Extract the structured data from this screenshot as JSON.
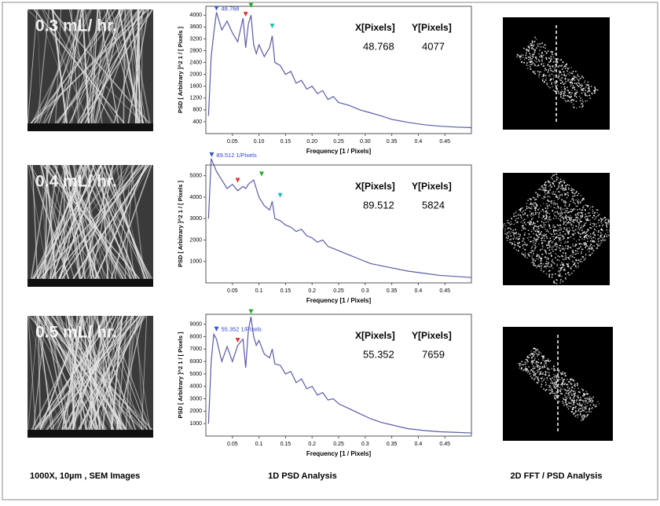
{
  "panels": [
    {
      "sem_label": "0.3 mL/ hr."
    },
    {
      "sem_label": "0.4 mL/ hr."
    },
    {
      "sem_label": "0.5 mL/ hr."
    }
  ],
  "captions": {
    "sem": "1000X, 10µm , SEM Images",
    "psd": "1D  PSD Analysis",
    "fft": "2D FFT / PSD Analysis"
  },
  "chart_data": [
    {
      "type": "line",
      "x_label": "Frequency [1 / Pixels]",
      "y_label": "PSD [ Arbitrary ]^2 1 / [ Pixels ]",
      "x": [
        0.005,
        0.01,
        0.015,
        0.02,
        0.03,
        0.04,
        0.05,
        0.06,
        0.07,
        0.075,
        0.08,
        0.085,
        0.09,
        0.095,
        0.1,
        0.11,
        0.12,
        0.125,
        0.13,
        0.14,
        0.15,
        0.16,
        0.17,
        0.18,
        0.19,
        0.2,
        0.21,
        0.22,
        0.23,
        0.24,
        0.25,
        0.27,
        0.29,
        0.31,
        0.33,
        0.35,
        0.38,
        0.41,
        0.44,
        0.47,
        0.5
      ],
      "series": [
        {
          "color": "#5a5aa8",
          "values": [
            600,
            2600,
            3400,
            4100,
            3500,
            3800,
            3400,
            3100,
            3900,
            2900,
            3700,
            4000,
            3000,
            2700,
            3000,
            2600,
            2900,
            3300,
            2400,
            2300,
            2000,
            2100,
            1700,
            1800,
            1500,
            1600,
            1350,
            1450,
            1150,
            1250,
            1050,
            950,
            800,
            700,
            600,
            480,
            380,
            300,
            250,
            220,
            200
          ]
        }
      ],
      "xlim": [
        0,
        0.5
      ],
      "ylim": [
        0,
        4300
      ],
      "xticks": [
        0.05,
        {
          "value": 0.1,
          "label": "0.10"
        },
        0.15,
        {
          "value": 0.2,
          "label": "0.20"
        },
        0.25,
        {
          "value": 0.3,
          "label": "0.30"
        },
        0.35,
        0.4,
        0.45
      ],
      "yticks": [
        400,
        800,
        1200,
        1600,
        2000,
        2400,
        2800,
        3200,
        3600,
        4000
      ],
      "markers": [
        {
          "x": 0.02,
          "y": 4100,
          "color": "#3355cc"
        },
        {
          "x": 0.075,
          "y": 3900,
          "color": "#dd3333"
        },
        {
          "x": 0.085,
          "y": 4200,
          "color": "#22aa22"
        },
        {
          "x": 0.125,
          "y": 3500,
          "color": "#22bbbb"
        }
      ],
      "peak_label": "48.768",
      "readout": {
        "x_header": "X[Pixels]",
        "y_header": "Y[Pixels]",
        "x_value": "48.768",
        "y_value": "4077"
      }
    },
    {
      "type": "line",
      "x_label": "Frequency [1 / Pixels]",
      "y_label": "PSD [ Arbitrary ]^2 1 / [ Pixels ]",
      "x": [
        0.005,
        0.01,
        0.015,
        0.02,
        0.03,
        0.04,
        0.05,
        0.06,
        0.07,
        0.075,
        0.08,
        0.085,
        0.09,
        0.095,
        0.1,
        0.11,
        0.12,
        0.125,
        0.13,
        0.14,
        0.15,
        0.16,
        0.17,
        0.18,
        0.19,
        0.2,
        0.21,
        0.22,
        0.23,
        0.24,
        0.25,
        0.27,
        0.29,
        0.31,
        0.33,
        0.35,
        0.38,
        0.41,
        0.44,
        0.47,
        0.5
      ],
      "series": [
        {
          "color": "#5a5aa8",
          "values": [
            3000,
            5800,
            5500,
            5200,
            4800,
            4400,
            4600,
            4300,
            4500,
            4400,
            4600,
            4700,
            4800,
            4400,
            4000,
            3600,
            3400,
            3800,
            3000,
            2900,
            2700,
            2600,
            2400,
            2500,
            2200,
            2100,
            1900,
            2000,
            1700,
            1600,
            1500,
            1300,
            1100,
            900,
            800,
            700,
            550,
            450,
            350,
            300,
            250
          ]
        }
      ],
      "xlim": [
        0,
        0.5
      ],
      "ylim": [
        0,
        5500
      ],
      "xticks": [
        0.05,
        0.1,
        0.15,
        0.2,
        0.25,
        0.3,
        0.35,
        0.4,
        0.45
      ],
      "yticks": [
        1000,
        2000,
        3000,
        4000,
        5000
      ],
      "markers": [
        {
          "x": 0.011,
          "y": 5800,
          "color": "#3355cc"
        },
        {
          "x": 0.06,
          "y": 4600,
          "color": "#dd3333"
        },
        {
          "x": 0.105,
          "y": 4900,
          "color": "#22aa22"
        },
        {
          "x": 0.14,
          "y": 3900,
          "color": "#22bbbb"
        }
      ],
      "peak_label": "89.512 1/Pixels",
      "readout": {
        "x_header": "X[Pixels]",
        "y_header": "Y[Pixels]",
        "x_value": "89.512",
        "y_value": "5824"
      }
    },
    {
      "type": "line",
      "x_label": "Frequency [1 / Pixels]",
      "y_label": "PSD [ Arbitrary ]^2 1 / [ Pixels ]",
      "x": [
        0.005,
        0.01,
        0.015,
        0.02,
        0.03,
        0.04,
        0.05,
        0.06,
        0.07,
        0.075,
        0.08,
        0.085,
        0.09,
        0.095,
        0.1,
        0.11,
        0.12,
        0.125,
        0.13,
        0.14,
        0.15,
        0.16,
        0.17,
        0.18,
        0.19,
        0.2,
        0.21,
        0.22,
        0.23,
        0.24,
        0.25,
        0.27,
        0.29,
        0.31,
        0.33,
        0.35,
        0.38,
        0.41,
        0.44,
        0.47,
        0.5
      ],
      "series": [
        {
          "color": "#5a5aa8",
          "values": [
            1000,
            6000,
            8200,
            7800,
            6000,
            7200,
            6000,
            7300,
            7800,
            5500,
            8500,
            9600,
            8000,
            7300,
            7700,
            6600,
            6300,
            7000,
            5800,
            5700,
            5000,
            5200,
            4300,
            4600,
            3800,
            4000,
            3300,
            3500,
            2900,
            3000,
            2600,
            2200,
            1800,
            1400,
            1100,
            900,
            600,
            450,
            350,
            300,
            250
          ]
        }
      ],
      "xlim": [
        0,
        0.5
      ],
      "ylim": [
        0,
        9800
      ],
      "xticks": [
        0.05,
        0.1,
        0.15,
        0.2,
        0.25,
        0.3,
        0.35,
        0.4,
        0.45
      ],
      "yticks": [
        1000,
        2000,
        3000,
        4000,
        5000,
        6000,
        7000,
        8000,
        9000
      ],
      "markers": [
        {
          "x": 0.02,
          "y": 8300,
          "color": "#3355cc"
        },
        {
          "x": 0.06,
          "y": 7400,
          "color": "#dd3333"
        },
        {
          "x": 0.085,
          "y": 9700,
          "color": "#22aa22"
        }
      ],
      "peak_label": "55.352 1/Pixels",
      "readout": {
        "x_header": "X[Pixels]",
        "y_header": "Y[Pixels]",
        "x_value": "55.352",
        "y_value": "7659"
      }
    }
  ]
}
